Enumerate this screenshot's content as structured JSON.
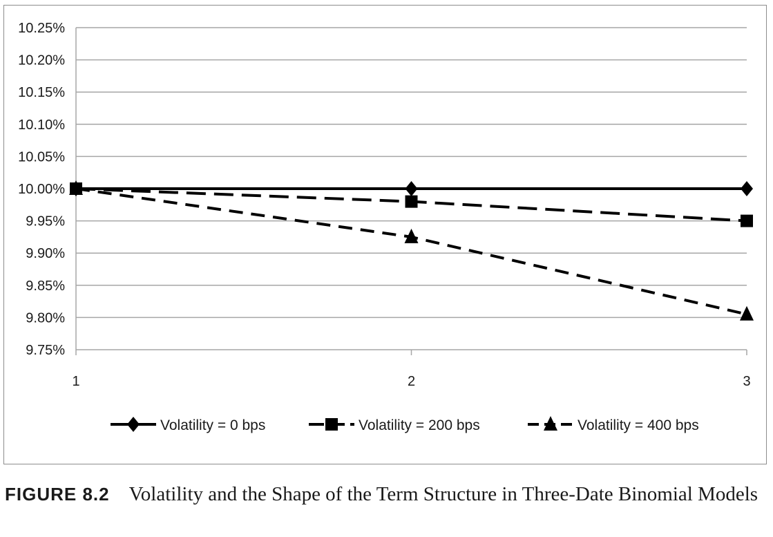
{
  "chart_data": {
    "type": "line",
    "x": [
      1,
      2,
      3
    ],
    "x_tick_labels": [
      "1",
      "2",
      "3"
    ],
    "y_tick_labels": [
      "10.25%",
      "10.20%",
      "10.15%",
      "10.10%",
      "10.05%",
      "10.00%",
      "9.95%",
      "9.90%",
      "9.85%",
      "9.80%",
      "9.75%"
    ],
    "ylim": [
      9.75,
      10.25
    ],
    "yunit": "%",
    "grid": true,
    "legend_position": "bottom",
    "series": [
      {
        "name": "Volatility = 0 bps",
        "values": [
          10.0,
          10.0,
          10.0
        ],
        "marker": "diamond",
        "line": "solid",
        "color": "#000000"
      },
      {
        "name": "Volatility = 200 bps",
        "values": [
          10.0,
          9.98,
          9.95
        ],
        "marker": "square",
        "line": "dashed-long",
        "color": "#000000"
      },
      {
        "name": "Volatility = 400 bps",
        "values": [
          10.0,
          9.925,
          9.805
        ],
        "marker": "triangle",
        "line": "dashed",
        "color": "#000000"
      }
    ]
  },
  "caption": {
    "label": "FIGURE 8.2",
    "text": "Volatility and the Shape of the Term Structure in Three-Date Binomial Models"
  },
  "colors": {
    "gridline": "#a6a6a6",
    "frame": "#8c8c8c",
    "ink": "#000000"
  }
}
